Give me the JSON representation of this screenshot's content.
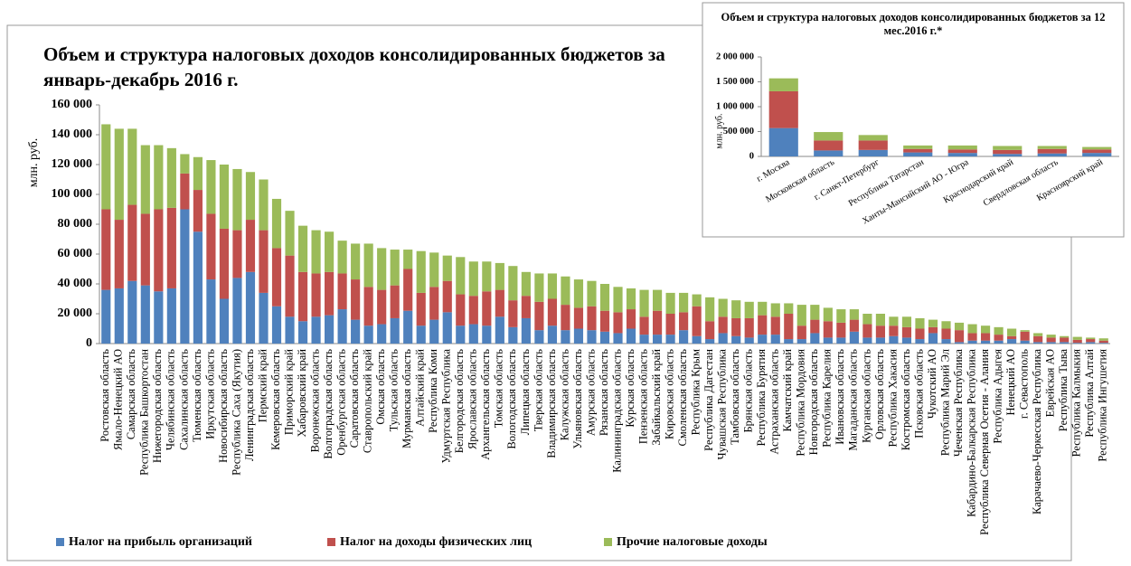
{
  "chart_data": [
    {
      "type": "bar",
      "stacked": true,
      "title": "Объем и структура налоговых доходов консолидированных бюджетов за январь-декабрь 2016 г.",
      "ylabel": "млн. руб.",
      "categories": [
        "Ростовская область",
        "Ямало-Ненецкий АО",
        "Самарская область",
        "Республика Башкортостан",
        "Нижегородская область",
        "Челябинская область",
        "Сахалинская область",
        "Тюменская область",
        "Иркутская область",
        "Новосибирская область",
        "Республика Саха (Якутия)",
        "Ленинградская область",
        "Пермский край",
        "Кемеровская область",
        "Приморский край",
        "Хабаровский край",
        "Воронежская область",
        "Волгоградская область",
        "Оренбургская область",
        "Саратовская область",
        "Ставропольский край",
        "Омская область",
        "Тульская область",
        "Мурманская область",
        "Алтайский край",
        "Республика Коми",
        "Удмуртская Республика",
        "Белгородская область",
        "Ярославская область",
        "Архангельская область",
        "Томская область",
        "Вологодская область",
        "Липецкая область",
        "Тверская область",
        "Владимирская область",
        "Калужская область",
        "Ульяновская область",
        "Амурская область",
        "Рязанская область",
        "Калининградская область",
        "Курская область",
        "Пензенская область",
        "Забайкальский край",
        "Кировская область",
        "Смоленская область",
        "Республика Крым",
        "Республика Дагестан",
        "Чувашская Республика",
        "Тамбовская область",
        "Брянская область",
        "Республика Бурятия",
        "Астраханская область",
        "Камчатский край",
        "Республика Мордовия",
        "Новгородская область",
        "Республика Карелия",
        "Ивановская область",
        "Магаданская область",
        "Курганская область",
        "Орловская область",
        "Республика Хакасия",
        "Костромская область",
        "Псковская область",
        "Чукотский АО",
        "Республика Марий Эл",
        "Чеченская Республика",
        "Кабардино-Балкарская Республика",
        "Республика Северная Осетия - Алания",
        "Республика Адыгея",
        "Ненецкий АО",
        "г. Севастополь",
        "Карачаево-Черкесская Республика",
        "Еврейская АО",
        "Республика Тыва",
        "Республика Калмыкия",
        "Республика Алтай",
        "Республика Ингушетия"
      ],
      "series": [
        {
          "name": "Налог на прибыль организаций",
          "color": "#4f81bd",
          "values": [
            36000,
            37000,
            42000,
            39000,
            35000,
            37000,
            90000,
            75000,
            43000,
            30000,
            44000,
            48000,
            34000,
            25000,
            18000,
            15000,
            18000,
            19000,
            23000,
            16000,
            12000,
            13000,
            17000,
            22000,
            12000,
            16000,
            21000,
            12000,
            13000,
            12000,
            18000,
            11000,
            17000,
            9000,
            12000,
            9000,
            10000,
            9000,
            8000,
            7000,
            10000,
            6000,
            6000,
            6000,
            9000,
            5000,
            3000,
            7000,
            5000,
            4000,
            6000,
            6000,
            3000,
            3000,
            7000,
            4000,
            4000,
            8000,
            4000,
            4000,
            5000,
            4000,
            3000,
            7000,
            3000,
            1000,
            2000,
            2000,
            2000,
            3000,
            2000,
            1000,
            1000,
            1000,
            500,
            1000,
            500
          ]
        },
        {
          "name": "Налог на доходы физических лиц",
          "color": "#c0504d",
          "values": [
            54000,
            46000,
            51000,
            48000,
            55000,
            54000,
            24000,
            28000,
            44000,
            47000,
            32000,
            35000,
            42000,
            39000,
            41000,
            33000,
            29000,
            29000,
            24000,
            27000,
            26000,
            23000,
            22000,
            28000,
            22000,
            22000,
            21000,
            21000,
            19000,
            23000,
            18000,
            18000,
            15000,
            19000,
            18000,
            17000,
            14000,
            16000,
            14000,
            14000,
            13000,
            12000,
            16000,
            14000,
            12000,
            20000,
            12000,
            11000,
            12000,
            13000,
            13000,
            12000,
            17000,
            9000,
            9000,
            11000,
            10000,
            8000,
            9000,
            8000,
            7000,
            7000,
            7000,
            4000,
            7000,
            8000,
            5000,
            5000,
            4000,
            2000,
            6000,
            4000,
            3000,
            3000,
            2000,
            2000,
            1500
          ]
        },
        {
          "name": "Прочие налоговые доходы",
          "color": "#9bbb59",
          "values": [
            57000,
            61000,
            51000,
            46000,
            43000,
            40000,
            13000,
            22000,
            36000,
            43000,
            41000,
            32000,
            34000,
            33000,
            30000,
            31000,
            29000,
            27000,
            22000,
            24000,
            29000,
            28000,
            24000,
            13000,
            28000,
            23000,
            17000,
            25000,
            23000,
            20000,
            18000,
            23000,
            16000,
            19000,
            17000,
            19000,
            19000,
            17000,
            18000,
            17000,
            14000,
            18000,
            14000,
            14000,
            13000,
            8000,
            16000,
            12000,
            12000,
            11000,
            9000,
            9000,
            7000,
            14000,
            10000,
            9000,
            9000,
            7000,
            7000,
            8000,
            6000,
            7000,
            7000,
            5000,
            5000,
            5000,
            6000,
            5000,
            5000,
            5000,
            1000,
            2000,
            2000,
            1000,
            2000,
            1000,
            1500
          ]
        }
      ],
      "ylim": [
        0,
        160000
      ],
      "yticks": [
        0,
        {
          "value": 20000,
          "label": "20 000"
        },
        {
          "value": 40000,
          "label": "40 000"
        },
        {
          "value": 60000,
          "label": "60 000"
        },
        {
          "value": 80000,
          "label": "80 000"
        },
        {
          "value": 100000,
          "label": "100 000"
        },
        {
          "value": 120000,
          "label": "120 000"
        },
        {
          "value": 140000,
          "label": "140 000"
        },
        {
          "value": 160000,
          "label": "160 000"
        }
      ],
      "legend": "bottom"
    },
    {
      "type": "bar",
      "stacked": true,
      "title": "Объем и структура налоговых доходов консолидированных бюджетов за 12 мес.2016 г.*",
      "ylabel": "млн. руб.",
      "categories": [
        "г. Москва",
        "Московская область",
        "г. Санкт-Петербург",
        "Республика Татарстан",
        "Ханты-Мансийский АО - Югра",
        "Краснодарский край",
        "Свердловская область",
        "Красноярский край"
      ],
      "series": [
        {
          "color": "#4f81bd",
          "values": [
            570000,
            120000,
            130000,
            80000,
            70000,
            50000,
            60000,
            70000
          ]
        },
        {
          "color": "#c0504d",
          "values": [
            740000,
            200000,
            190000,
            70000,
            70000,
            80000,
            90000,
            70000
          ]
        },
        {
          "color": "#9bbb59",
          "values": [
            260000,
            170000,
            110000,
            70000,
            80000,
            80000,
            60000,
            50000
          ]
        }
      ],
      "ylim": [
        0,
        2000000
      ],
      "yticks": [
        0,
        {
          "value": 500000,
          "label": "500 000"
        },
        {
          "value": 1000000,
          "label": "1 000 000"
        },
        {
          "value": 1500000,
          "label": "1 500 000"
        },
        {
          "value": 2000000,
          "label": "2 000 000"
        }
      ]
    }
  ]
}
